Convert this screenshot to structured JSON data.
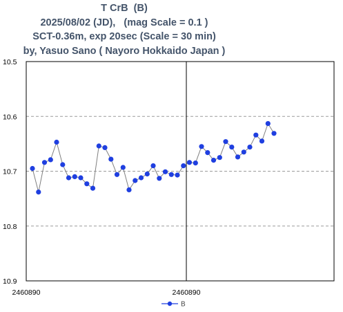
{
  "chart_data": {
    "type": "line",
    "title_lines": [
      "T CrB  (B)",
      "2025/08/02 (JD),   (mag Scale = 0.1 )",
      "SCT-0.36m, exp 20sec (Scale = 30 min)",
      "by, Yasuo Sano ( Nayoro Hokkaido Japan )"
    ],
    "xlabel": "",
    "ylabel": "",
    "y_inverted": true,
    "ylim": [
      10.5,
      10.9
    ],
    "yticks": [
      "10.5",
      "10.6",
      "10.7",
      "10.8",
      "10.9"
    ],
    "xticks": [
      "2460890",
      "2460890"
    ],
    "grid": "horizontal dashed",
    "series": [
      {
        "name": "B",
        "color": "#1f3fe0",
        "values": [
          10.695,
          10.738,
          10.684,
          10.679,
          10.647,
          10.688,
          10.712,
          10.71,
          10.712,
          10.723,
          10.731,
          10.654,
          10.657,
          10.678,
          10.706,
          10.693,
          10.734,
          10.717,
          10.712,
          10.705,
          10.69,
          10.713,
          10.701,
          10.706,
          10.707,
          10.69,
          10.684,
          10.685,
          10.655,
          10.666,
          10.68,
          10.675,
          10.646,
          10.656,
          10.674,
          10.665,
          10.656,
          10.634,
          10.645,
          10.613,
          10.631
        ]
      }
    ],
    "legend": {
      "position": "bottom-center"
    }
  }
}
